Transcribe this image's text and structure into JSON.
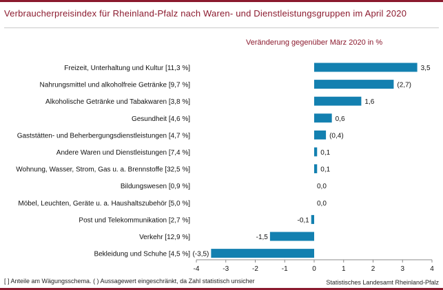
{
  "title": "Verbraucherpreisindex für Rheinland-Pfalz nach Waren- und Dienstleistungsgruppen im April 2020",
  "subtitle": "Veränderung  gegenüber März 2020 in %",
  "footnote": "[ ] Anteile am Wägungsschema.   ( ) Aussagewert eingeschränkt, da Zahl statistisch unsicher",
  "source": "Statistisches Landesamt Rheinland-Pfalz",
  "colors": {
    "bar": "#1380b0",
    "accent": "#8b1a2e"
  },
  "chart_data": {
    "type": "bar",
    "orientation": "horizontal",
    "categories": [
      "Freizeit, Unterhaltung und Kultur [11,3 %]",
      "Nahrungsmittel und alkoholfreie Getränke [9,7 %]",
      "Alkoholische Getränke und Tabakwaren [3,8 %]",
      "Gesundheit [4,6 %]",
      "Gaststätten- und Beherbergungsdienstleistungen [4,7 %]",
      "Andere Waren und Dienstleistungen [7,4 %]",
      "Wohnung, Wasser, Strom, Gas u. a. Brennstoffe [32,5 %]",
      "Bildungswesen [0,9 %]",
      "Möbel, Leuchten, Geräte u. a. Haushaltszubehör [5,0 %]",
      "Post und Telekommunikation [2,7 %]",
      "Verkehr [12,9 %]",
      "Bekleidung und Schuhe [4,5 %]"
    ],
    "values": [
      3.5,
      2.7,
      1.6,
      0.6,
      0.4,
      0.1,
      0.1,
      0.0,
      0.0,
      -0.1,
      -1.5,
      -3.5
    ],
    "data_labels": [
      "3,5",
      "(2,7)",
      "1,6",
      "0,6",
      "(0,4)",
      "0,1",
      "0,1",
      "0,0",
      "0,0",
      "-0,1",
      "-1,5",
      "(-3,5)"
    ],
    "xlim": [
      -4,
      4
    ],
    "xticks": [
      -4,
      -3,
      -2,
      -1,
      0,
      1,
      2,
      3,
      4
    ],
    "xtick_labels": [
      "-4",
      "-3",
      "-2",
      "-1",
      "0",
      "1",
      "2",
      "3",
      "4"
    ],
    "grid": false,
    "legend": "none"
  }
}
